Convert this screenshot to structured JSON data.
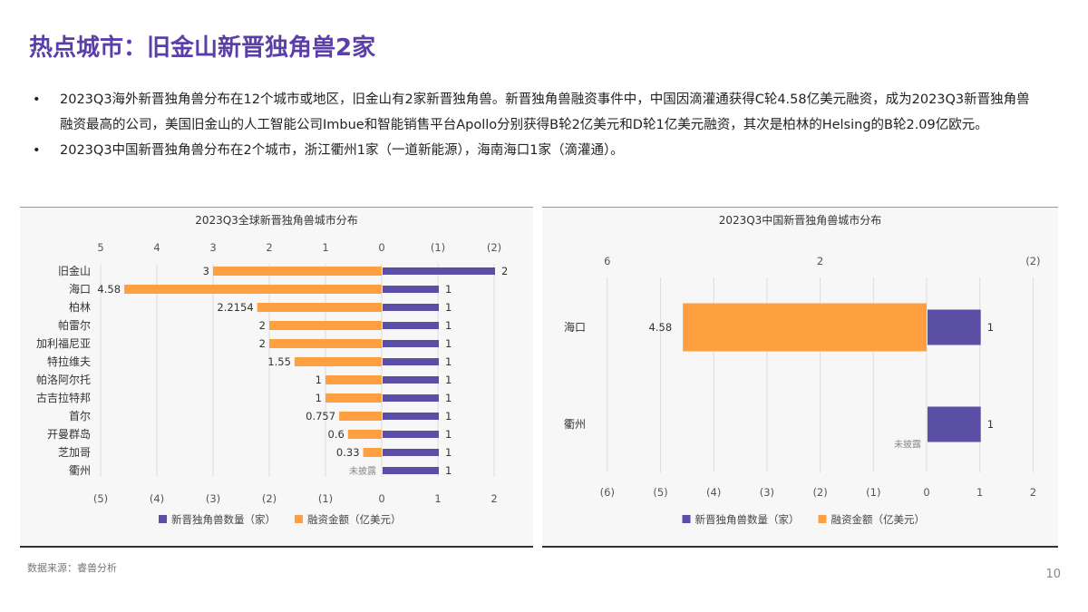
{
  "title": "热点城市：旧金山新晋独角兽2家",
  "bullets": [
    "2023Q3海外新晋独角兽分布在12个城市或地区，旧金山有2家新晋独角兽。新晋独角兽融资事件中，中国因滴灌通获得C轮4.58亿美元融资，成为2023Q3新晋独角兽融资最高的公司，美国旧金山的人工智能公司Imbue和智能销售平台Apollo分别获得B轮2亿美元和D轮1亿美元融资，其次是柏林的Helsing的B轮2.09亿欧元。",
    "2023Q3中国新晋独角兽分布在2个城市，浙江衢州1家（一道新能源），海南海口1家（滴灌通）。"
  ],
  "source": "数据来源：睿兽分析",
  "page_number": "10",
  "colors": {
    "count": "#5b4ea5",
    "amount": "#ffa040",
    "title": "#5b3fa8"
  },
  "chart_data": [
    {
      "type": "bar",
      "orientation": "horizontal",
      "title": "2023Q3全球新晋独角兽城市分布",
      "categories": [
        "旧金山",
        "海口",
        "柏林",
        "帕雷尔",
        "加利福尼亚",
        "特拉维夫",
        "帕洛阿尔托",
        "古吉拉特邦",
        "首尔",
        "开曼群岛",
        "芝加哥",
        "衢州"
      ],
      "series": [
        {
          "name": "新晋独角兽数量（家）",
          "values": [
            2,
            1,
            1,
            1,
            1,
            1,
            1,
            1,
            1,
            1,
            1,
            1
          ]
        },
        {
          "name": "融资金额（亿美元）",
          "values": [
            3,
            4.58,
            2.2154,
            2,
            2,
            1.55,
            1,
            1,
            0.757,
            0.6,
            0.33,
            null
          ],
          "labels": [
            "3",
            "4.58",
            "2.2154",
            "2",
            "2",
            "1.55",
            "1",
            "1",
            "0.757",
            "0.6",
            "0.33",
            "未披露"
          ]
        }
      ],
      "top_ticks": [
        "5",
        "4",
        "3",
        "2",
        "1",
        "0",
        "(1)",
        "(2)"
      ],
      "bottom_ticks": [
        "(5)",
        "(4)",
        "(3)",
        "(2)",
        "(1)",
        "0",
        "1",
        "2"
      ],
      "xlim": [
        -5,
        2
      ],
      "grid": true,
      "legend": "bottom"
    },
    {
      "type": "bar",
      "orientation": "horizontal",
      "title": "2023Q3中国新晋独角兽城市分布",
      "categories": [
        "海口",
        "衢州"
      ],
      "series": [
        {
          "name": "新晋独角兽数量（家）",
          "values": [
            1,
            1
          ]
        },
        {
          "name": "融资金额（亿美元）",
          "values": [
            4.58,
            null
          ],
          "labels": [
            "4.58",
            "未披露"
          ]
        }
      ],
      "top_ticks": [
        "6",
        "2",
        "(2)"
      ],
      "bottom_ticks": [
        "(6)",
        "(5)",
        "(4)",
        "(3)",
        "(2)",
        "(1)",
        "0",
        "1",
        "2"
      ],
      "xlim": [
        -6,
        2
      ],
      "grid": true,
      "legend": "bottom"
    }
  ]
}
